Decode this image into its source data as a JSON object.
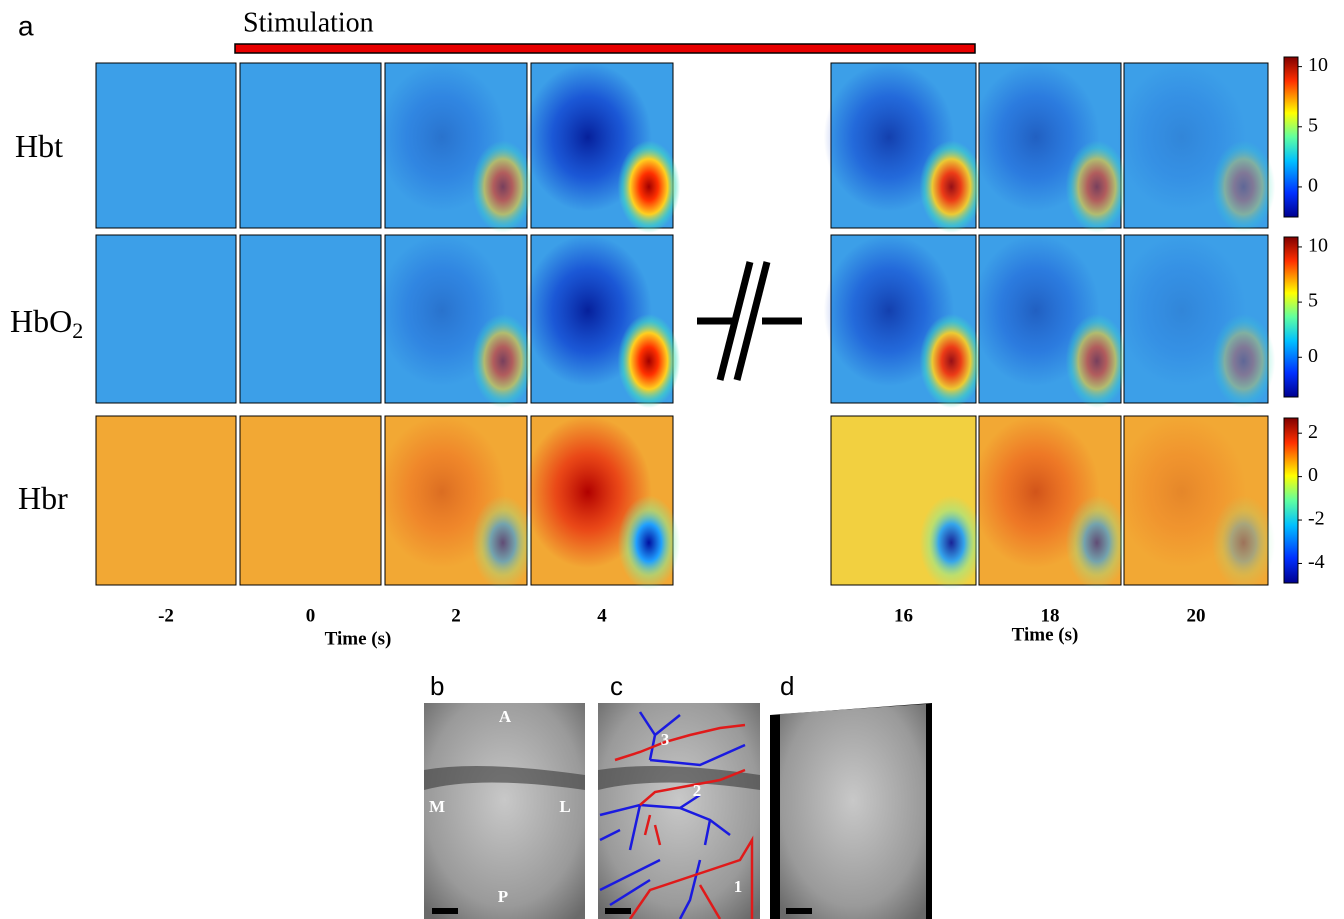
{
  "panel_a_label": "a",
  "stimulation": "Stimulation",
  "rows": [
    {
      "label": "Hbt"
    },
    {
      "label": "HbO",
      "label_subscript": "2"
    },
    {
      "label": "Hbr"
    }
  ],
  "colorbars": [
    {
      "range": [
        -2.5,
        10.8
      ],
      "ticks": [
        10,
        5,
        0
      ]
    },
    {
      "range": [
        -3.6,
        10.9
      ],
      "ticks": [
        10,
        5,
        0
      ]
    },
    {
      "range": [
        -4.9,
        2.7
      ],
      "ticks": [
        2,
        0,
        -2,
        -4
      ]
    }
  ],
  "times": [
    -2,
    0,
    2,
    4,
    16,
    18,
    20
  ],
  "time_axis_label": "Time (s)",
  "sub_panels": [
    {
      "label": "b",
      "markers": [
        "A",
        "M",
        "L",
        "P"
      ]
    },
    {
      "label": "c",
      "markers": [
        "3",
        "2",
        "1"
      ]
    },
    {
      "label": "d"
    }
  ]
}
